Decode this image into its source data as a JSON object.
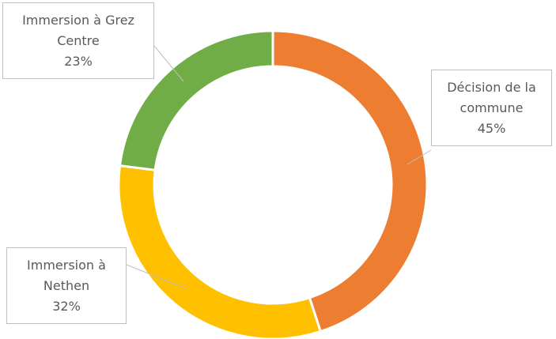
{
  "chart_data": {
    "type": "donut",
    "categories": [
      "Décision de la commune",
      "Immersion à Nethen",
      "Immersion à Grez Centre"
    ],
    "values": [
      45,
      32,
      23
    ],
    "value_labels": [
      "45%",
      "32%",
      "23%"
    ],
    "colors": [
      "#ed7d31",
      "#ffc000",
      "#70ad47"
    ]
  }
}
